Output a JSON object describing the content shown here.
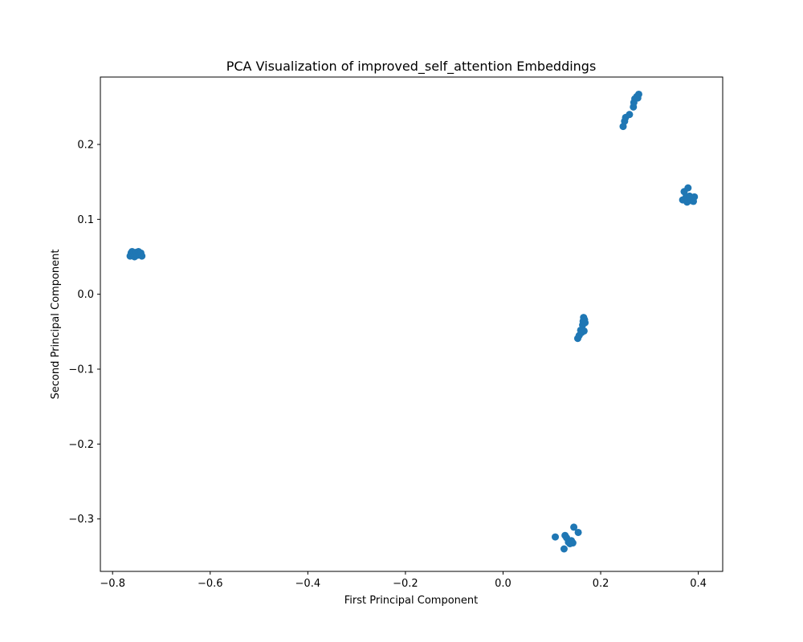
{
  "chart_data": {
    "type": "scatter",
    "title": "PCA Visualization of improved_self_attention Embeddings",
    "xlabel": "First Principal Component",
    "ylabel": "Second Principal Component",
    "xlim": [
      -0.825,
      0.45
    ],
    "ylim": [
      -0.37,
      0.29
    ],
    "xticks": [
      -0.8,
      -0.6,
      -0.4,
      -0.2,
      0.0,
      0.2,
      0.4
    ],
    "xtick_labels": [
      "−0.8",
      "−0.6",
      "−0.4",
      "−0.2",
      "0.0",
      "0.2",
      "0.4"
    ],
    "yticks": [
      -0.3,
      -0.2,
      -0.1,
      0.0,
      0.1,
      0.2
    ],
    "ytick_labels": [
      "−0.3",
      "−0.2",
      "−0.1",
      "0.0",
      "0.1",
      "0.2"
    ],
    "grid": false,
    "marker_color": "#1f77b4",
    "points": [
      {
        "x": -0.764,
        "y": 0.051
      },
      {
        "x": -0.762,
        "y": 0.055
      },
      {
        "x": -0.76,
        "y": 0.057
      },
      {
        "x": -0.757,
        "y": 0.053
      },
      {
        "x": -0.755,
        "y": 0.05
      },
      {
        "x": -0.753,
        "y": 0.054
      },
      {
        "x": -0.751,
        "y": 0.056
      },
      {
        "x": -0.749,
        "y": 0.052
      },
      {
        "x": -0.747,
        "y": 0.057
      },
      {
        "x": -0.745,
        "y": 0.054
      },
      {
        "x": -0.742,
        "y": 0.055
      },
      {
        "x": -0.74,
        "y": 0.051
      },
      {
        "x": 0.246,
        "y": 0.224
      },
      {
        "x": 0.249,
        "y": 0.231
      },
      {
        "x": 0.251,
        "y": 0.236
      },
      {
        "x": 0.259,
        "y": 0.24
      },
      {
        "x": 0.267,
        "y": 0.25
      },
      {
        "x": 0.268,
        "y": 0.256
      },
      {
        "x": 0.27,
        "y": 0.261
      },
      {
        "x": 0.274,
        "y": 0.264
      },
      {
        "x": 0.276,
        "y": 0.262
      },
      {
        "x": 0.278,
        "y": 0.267
      },
      {
        "x": 0.368,
        "y": 0.126
      },
      {
        "x": 0.371,
        "y": 0.137
      },
      {
        "x": 0.375,
        "y": 0.13
      },
      {
        "x": 0.377,
        "y": 0.123
      },
      {
        "x": 0.379,
        "y": 0.142
      },
      {
        "x": 0.382,
        "y": 0.131
      },
      {
        "x": 0.386,
        "y": 0.125
      },
      {
        "x": 0.39,
        "y": 0.124
      },
      {
        "x": 0.392,
        "y": 0.13
      },
      {
        "x": 0.153,
        "y": -0.059
      },
      {
        "x": 0.156,
        "y": -0.055
      },
      {
        "x": 0.159,
        "y": -0.048
      },
      {
        "x": 0.161,
        "y": -0.051
      },
      {
        "x": 0.163,
        "y": -0.041
      },
      {
        "x": 0.164,
        "y": -0.036
      },
      {
        "x": 0.165,
        "y": -0.031
      },
      {
        "x": 0.166,
        "y": -0.049
      },
      {
        "x": 0.167,
        "y": -0.034
      },
      {
        "x": 0.168,
        "y": -0.038
      },
      {
        "x": 0.107,
        "y": -0.324
      },
      {
        "x": 0.125,
        "y": -0.34
      },
      {
        "x": 0.127,
        "y": -0.322
      },
      {
        "x": 0.13,
        "y": -0.325
      },
      {
        "x": 0.134,
        "y": -0.331
      },
      {
        "x": 0.137,
        "y": -0.333
      },
      {
        "x": 0.14,
        "y": -0.329
      },
      {
        "x": 0.143,
        "y": -0.332
      },
      {
        "x": 0.145,
        "y": -0.311
      },
      {
        "x": 0.154,
        "y": -0.318
      }
    ]
  }
}
